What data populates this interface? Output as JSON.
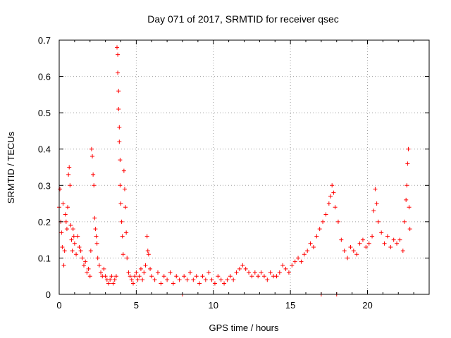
{
  "chart_data": {
    "type": "scatter",
    "title": "Day 071 of 2017, SRMTID for receiver qsec",
    "xlabel": "GPS time / hours",
    "ylabel": "SRMTID / TECUs",
    "xlim": [
      0,
      24
    ],
    "ylim": [
      0,
      0.7
    ],
    "xticks": [
      0,
      5,
      10,
      15,
      20
    ],
    "xtick_labels": [
      "0",
      "5",
      "10",
      "15",
      "20"
    ],
    "yticks": [
      0,
      0.1,
      0.2,
      0.3,
      0.4,
      0.5,
      0.6,
      0.7
    ],
    "ytick_labels": [
      "0",
      "0.1",
      "0.2",
      "0.3",
      "0.4",
      "0.5",
      "0.6",
      "0.7"
    ],
    "grid": true,
    "marker": "+",
    "color": "#ff0000",
    "series": [
      {
        "name": "SRMTID",
        "points": [
          [
            0.0,
            0.24
          ],
          [
            0.05,
            0.29
          ],
          [
            0.1,
            0.2
          ],
          [
            0.15,
            0.17
          ],
          [
            0.2,
            0.13
          ],
          [
            0.25,
            0.25
          ],
          [
            0.3,
            0.08
          ],
          [
            0.35,
            0.12
          ],
          [
            0.4,
            0.22
          ],
          [
            0.45,
            0.2
          ],
          [
            0.5,
            0.18
          ],
          [
            0.55,
            0.24
          ],
          [
            0.6,
            0.33
          ],
          [
            0.65,
            0.35
          ],
          [
            0.7,
            0.3
          ],
          [
            0.75,
            0.19
          ],
          [
            0.8,
            0.15
          ],
          [
            0.85,
            0.12
          ],
          [
            0.9,
            0.18
          ],
          [
            0.95,
            0.16
          ],
          [
            1.0,
            0.14
          ],
          [
            1.1,
            0.11
          ],
          [
            1.2,
            0.16
          ],
          [
            1.3,
            0.13
          ],
          [
            1.4,
            0.12
          ],
          [
            1.5,
            0.1
          ],
          [
            1.6,
            0.08
          ],
          [
            1.7,
            0.09
          ],
          [
            1.8,
            0.06
          ],
          [
            1.9,
            0.07
          ],
          [
            2.0,
            0.05
          ],
          [
            2.05,
            0.12
          ],
          [
            2.1,
            0.4
          ],
          [
            2.15,
            0.38
          ],
          [
            2.2,
            0.33
          ],
          [
            2.25,
            0.3
          ],
          [
            2.3,
            0.21
          ],
          [
            2.35,
            0.18
          ],
          [
            2.4,
            0.16
          ],
          [
            2.45,
            0.14
          ],
          [
            2.5,
            0.1
          ],
          [
            2.6,
            0.08
          ],
          [
            2.7,
            0.06
          ],
          [
            2.8,
            0.05
          ],
          [
            2.9,
            0.07
          ],
          [
            3.0,
            0.05
          ],
          [
            3.1,
            0.04
          ],
          [
            3.2,
            0.03
          ],
          [
            3.3,
            0.04
          ],
          [
            3.4,
            0.05
          ],
          [
            3.5,
            0.03
          ],
          [
            3.6,
            0.04
          ],
          [
            3.7,
            0.05
          ],
          [
            3.75,
            0.68
          ],
          [
            3.8,
            0.66
          ],
          [
            3.8,
            0.61
          ],
          [
            3.85,
            0.56
          ],
          [
            3.85,
            0.51
          ],
          [
            3.9,
            0.46
          ],
          [
            3.9,
            0.42
          ],
          [
            3.95,
            0.37
          ],
          [
            3.95,
            0.3
          ],
          [
            4.0,
            0.25
          ],
          [
            4.05,
            0.2
          ],
          [
            4.1,
            0.16
          ],
          [
            4.15,
            0.11
          ],
          [
            4.2,
            0.34
          ],
          [
            4.25,
            0.29
          ],
          [
            4.3,
            0.24
          ],
          [
            4.35,
            0.17
          ],
          [
            4.4,
            0.1
          ],
          [
            4.5,
            0.06
          ],
          [
            4.6,
            0.05
          ],
          [
            4.7,
            0.04
          ],
          [
            4.8,
            0.03
          ],
          [
            4.9,
            0.05
          ],
          [
            5.0,
            0.06
          ],
          [
            5.1,
            0.04
          ],
          [
            5.2,
            0.05
          ],
          [
            5.3,
            0.07
          ],
          [
            5.4,
            0.04
          ],
          [
            5.5,
            0.06
          ],
          [
            5.6,
            0.08
          ],
          [
            5.7,
            0.16
          ],
          [
            5.75,
            0.12
          ],
          [
            5.8,
            0.11
          ],
          [
            5.9,
            0.07
          ],
          [
            6.0,
            0.05
          ],
          [
            6.2,
            0.04
          ],
          [
            6.4,
            0.06
          ],
          [
            6.6,
            0.03
          ],
          [
            6.8,
            0.05
          ],
          [
            7.0,
            0.04
          ],
          [
            7.2,
            0.06
          ],
          [
            7.4,
            0.03
          ],
          [
            7.6,
            0.05
          ],
          [
            7.8,
            0.04
          ],
          [
            8.0,
            0.0
          ],
          [
            8.1,
            0.05
          ],
          [
            8.3,
            0.04
          ],
          [
            8.5,
            0.06
          ],
          [
            8.7,
            0.04
          ],
          [
            8.9,
            0.05
          ],
          [
            9.1,
            0.03
          ],
          [
            9.3,
            0.05
          ],
          [
            9.5,
            0.04
          ],
          [
            9.7,
            0.06
          ],
          [
            9.9,
            0.04
          ],
          [
            10.1,
            0.03
          ],
          [
            10.3,
            0.05
          ],
          [
            10.5,
            0.04
          ],
          [
            10.7,
            0.03
          ],
          [
            10.9,
            0.04
          ],
          [
            11.1,
            0.05
          ],
          [
            11.3,
            0.04
          ],
          [
            11.5,
            0.06
          ],
          [
            11.7,
            0.07
          ],
          [
            11.9,
            0.08
          ],
          [
            12.1,
            0.07
          ],
          [
            12.3,
            0.06
          ],
          [
            12.5,
            0.05
          ],
          [
            12.7,
            0.06
          ],
          [
            12.9,
            0.05
          ],
          [
            13.1,
            0.06
          ],
          [
            13.3,
            0.05
          ],
          [
            13.5,
            0.04
          ],
          [
            13.7,
            0.06
          ],
          [
            13.9,
            0.05
          ],
          [
            14.1,
            0.05
          ],
          [
            14.3,
            0.06
          ],
          [
            14.5,
            0.08
          ],
          [
            14.7,
            0.07
          ],
          [
            14.9,
            0.06
          ],
          [
            15.1,
            0.08
          ],
          [
            15.3,
            0.09
          ],
          [
            15.5,
            0.1
          ],
          [
            15.7,
            0.09
          ],
          [
            15.9,
            0.11
          ],
          [
            16.1,
            0.12
          ],
          [
            16.3,
            0.14
          ],
          [
            16.5,
            0.13
          ],
          [
            16.7,
            0.16
          ],
          [
            16.9,
            0.18
          ],
          [
            17.0,
            0.0
          ],
          [
            17.1,
            0.2
          ],
          [
            17.3,
            0.22
          ],
          [
            17.5,
            0.25
          ],
          [
            17.6,
            0.27
          ],
          [
            17.7,
            0.3
          ],
          [
            17.8,
            0.28
          ],
          [
            17.9,
            0.24
          ],
          [
            18.0,
            0.0
          ],
          [
            18.1,
            0.2
          ],
          [
            18.3,
            0.15
          ],
          [
            18.5,
            0.12
          ],
          [
            18.7,
            0.1
          ],
          [
            18.9,
            0.13
          ],
          [
            19.1,
            0.12
          ],
          [
            19.3,
            0.11
          ],
          [
            19.5,
            0.14
          ],
          [
            19.7,
            0.15
          ],
          [
            19.9,
            0.13
          ],
          [
            20.1,
            0.14
          ],
          [
            20.3,
            0.16
          ],
          [
            20.4,
            0.23
          ],
          [
            20.5,
            0.29
          ],
          [
            20.6,
            0.25
          ],
          [
            20.7,
            0.2
          ],
          [
            20.9,
            0.17
          ],
          [
            21.1,
            0.14
          ],
          [
            21.3,
            0.16
          ],
          [
            21.5,
            0.13
          ],
          [
            21.7,
            0.15
          ],
          [
            21.9,
            0.14
          ],
          [
            22.1,
            0.15
          ],
          [
            22.3,
            0.12
          ],
          [
            22.4,
            0.2
          ],
          [
            22.5,
            0.26
          ],
          [
            22.55,
            0.3
          ],
          [
            22.6,
            0.36
          ],
          [
            22.65,
            0.4
          ],
          [
            22.7,
            0.24
          ],
          [
            22.75,
            0.18
          ]
        ]
      }
    ]
  }
}
